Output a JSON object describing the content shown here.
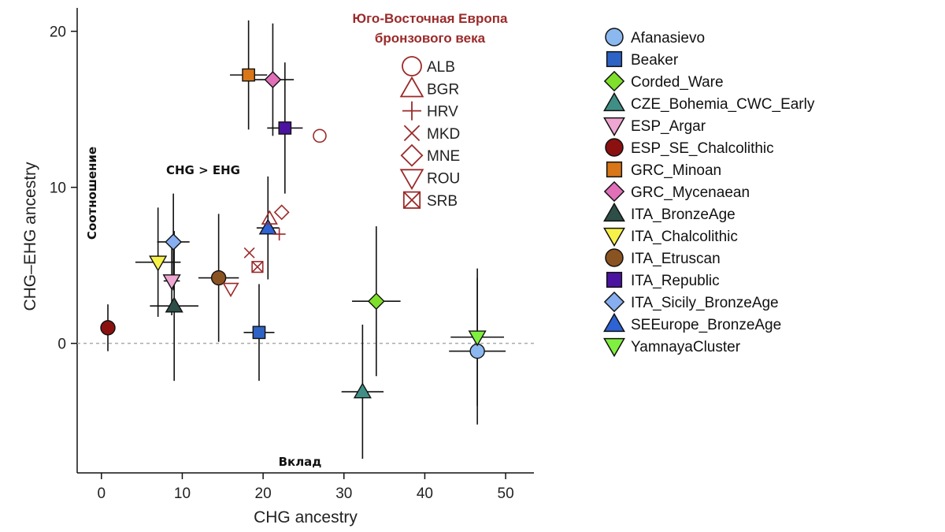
{
  "chart_data": {
    "type": "scatter",
    "xlabel": "CHG ancestry",
    "ylabel": "CHG–EHG ancestry",
    "xlim": [
      -3,
      53.5
    ],
    "ylim": [
      -8.3,
      21.5
    ],
    "xticks": [
      0,
      10,
      20,
      30,
      40,
      50
    ],
    "yticks": [
      0,
      10,
      20
    ],
    "zero_line": true,
    "annotations": {
      "top_label": "CHG > EHG",
      "left_vertical": "Соотношение",
      "bottom": "Вклад"
    },
    "series": [
      {
        "name": "Afanasievo",
        "marker": "circle",
        "color": "#8cb8f0",
        "x": 46.5,
        "y": -0.5,
        "xerr": [
          3.5,
          3.5
        ],
        "yerr": [
          4.7,
          4.7
        ]
      },
      {
        "name": "Beaker",
        "marker": "square",
        "color": "#2d63c4",
        "x": 19.5,
        "y": 0.7,
        "xerr": [
          1.9,
          1.9
        ],
        "yerr": [
          3.1,
          3.1
        ]
      },
      {
        "name": "Corded_Ware",
        "marker": "diamond",
        "color": "#7fe02b",
        "x": 34.0,
        "y": 2.7,
        "xerr": [
          3.0,
          3.0
        ],
        "yerr": [
          4.8,
          4.8
        ]
      },
      {
        "name": "CZE_Bohemia_CWC_Early",
        "marker": "triangle-up",
        "color": "#3f8f86",
        "x": 32.3,
        "y": -3.1,
        "xerr": [
          2.6,
          2.6
        ],
        "yerr": [
          4.3,
          4.3
        ]
      },
      {
        "name": "ESP_Argar",
        "marker": "triangle-down",
        "color": "#f0a6d2",
        "x": 8.7,
        "y": 4.0,
        "xerr": [
          1.0,
          1.0
        ],
        "yerr": [
          2.2,
          2.2
        ]
      },
      {
        "name": "ESP_SE_Chalcolithic",
        "marker": "circle",
        "color": "#8b1010",
        "x": 0.8,
        "y": 1.0,
        "xerr": [
          0.8,
          0.8
        ],
        "yerr": [
          1.5,
          1.5
        ]
      },
      {
        "name": "GRC_Minoan",
        "marker": "square",
        "color": "#d87619",
        "x": 18.2,
        "y": 17.2,
        "xerr": [
          2.3,
          2.3
        ],
        "yerr": [
          3.5,
          3.5
        ]
      },
      {
        "name": "GRC_Mycenaean",
        "marker": "diamond",
        "color": "#e070b8",
        "x": 21.2,
        "y": 16.9,
        "xerr": [
          2.6,
          2.6
        ],
        "yerr": [
          3.6,
          3.6
        ]
      },
      {
        "name": "ITA_BronzeAge",
        "marker": "triangle-up",
        "color": "#2e4f48",
        "x": 9.0,
        "y": 2.4,
        "xerr": [
          3.0,
          3.0
        ],
        "yerr": [
          4.8,
          4.8
        ]
      },
      {
        "name": "ITA_Chalcolithic",
        "marker": "triangle-down",
        "color": "#f7f24a",
        "x": 7.0,
        "y": 5.2,
        "xerr": [
          2.8,
          2.8
        ],
        "yerr": [
          3.5,
          3.5
        ]
      },
      {
        "name": "ITA_Etruscan",
        "marker": "circle",
        "color": "#8a5322",
        "x": 14.5,
        "y": 4.2,
        "xerr": [
          2.5,
          2.5
        ],
        "yerr": [
          4.1,
          4.1
        ]
      },
      {
        "name": "ITA_Republic",
        "marker": "square",
        "color": "#4a14a0",
        "x": 22.7,
        "y": 13.8,
        "xerr": [
          2.2,
          2.2
        ],
        "yerr": [
          4.2,
          4.2
        ]
      },
      {
        "name": "ITA_Sicily_BronzeAge",
        "marker": "diamond",
        "color": "#86aef0",
        "x": 8.9,
        "y": 6.5,
        "xerr": [
          2.0,
          2.0
        ],
        "yerr": [
          3.1,
          3.1
        ]
      },
      {
        "name": "SEEurope_BronzeAge",
        "marker": "triangle-up",
        "color": "#2d63d4",
        "x": 20.6,
        "y": 7.4,
        "xerr": [
          1.4,
          1.4
        ],
        "yerr": [
          3.3,
          3.3
        ]
      },
      {
        "name": "YamnayaCluster",
        "marker": "triangle-down",
        "color": "#80f040",
        "x": 46.5,
        "y": 0.4,
        "xerr": [
          3.3,
          3.3
        ],
        "yerr": [
          4.4,
          4.4
        ]
      }
    ],
    "individuals_title": [
      "Юго-Восточная Европа",
      "бронзового века"
    ],
    "individuals_color": "#9b2a2a",
    "individuals": [
      {
        "name": "ALB",
        "marker": "circle",
        "x": 27.0,
        "y": 13.3
      },
      {
        "name": "BGR",
        "marker": "triangle-up",
        "x": 20.8,
        "y": 8.0
      },
      {
        "name": "HRV",
        "marker": "plus",
        "x": 22.0,
        "y": 7.0
      },
      {
        "name": "MKD",
        "marker": "x",
        "x": 18.3,
        "y": 5.8
      },
      {
        "name": "MNE",
        "marker": "diamond",
        "x": 22.3,
        "y": 8.4
      },
      {
        "name": "ROU",
        "marker": "triangle-down",
        "x": 16.0,
        "y": 3.5
      },
      {
        "name": "SRB",
        "marker": "boxed-x",
        "x": 19.3,
        "y": 4.9
      }
    ]
  }
}
